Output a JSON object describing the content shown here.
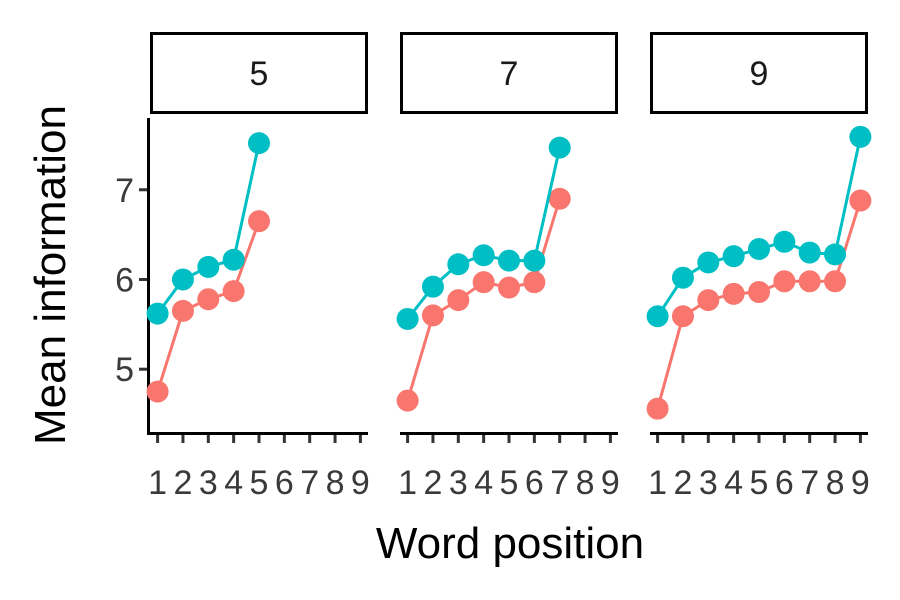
{
  "chart_data": {
    "type": "line",
    "xlabel": "Word position",
    "ylabel": "Mean information",
    "x_tick_labels": [
      "1",
      "2",
      "3",
      "4",
      "5",
      "6",
      "7",
      "8",
      "9"
    ],
    "y_ticks": [
      5,
      6,
      7
    ],
    "xlim": [
      0.7,
      9.3
    ],
    "ylim": [
      4.3,
      7.8
    ],
    "legend": "none",
    "series_colors": [
      "#F8766D",
      "#00BFC4"
    ],
    "panels": [
      {
        "label": "5",
        "series": [
          {
            "values": [
              4.75,
              5.65,
              5.78,
              5.87,
              6.65
            ]
          },
          {
            "values": [
              5.62,
              6.0,
              6.14,
              6.22,
              7.52
            ]
          }
        ]
      },
      {
        "label": "7",
        "series": [
          {
            "values": [
              4.65,
              5.6,
              5.77,
              5.97,
              5.91,
              5.97,
              6.9
            ]
          },
          {
            "values": [
              5.56,
              5.92,
              6.17,
              6.27,
              6.21,
              6.21,
              7.47
            ]
          }
        ]
      },
      {
        "label": "9",
        "series": [
          {
            "values": [
              4.56,
              5.59,
              5.77,
              5.84,
              5.86,
              5.98,
              5.98,
              5.98,
              6.88
            ]
          },
          {
            "values": [
              5.59,
              6.02,
              6.19,
              6.26,
              6.34,
              6.42,
              6.3,
              6.28,
              7.59
            ]
          }
        ]
      }
    ]
  }
}
